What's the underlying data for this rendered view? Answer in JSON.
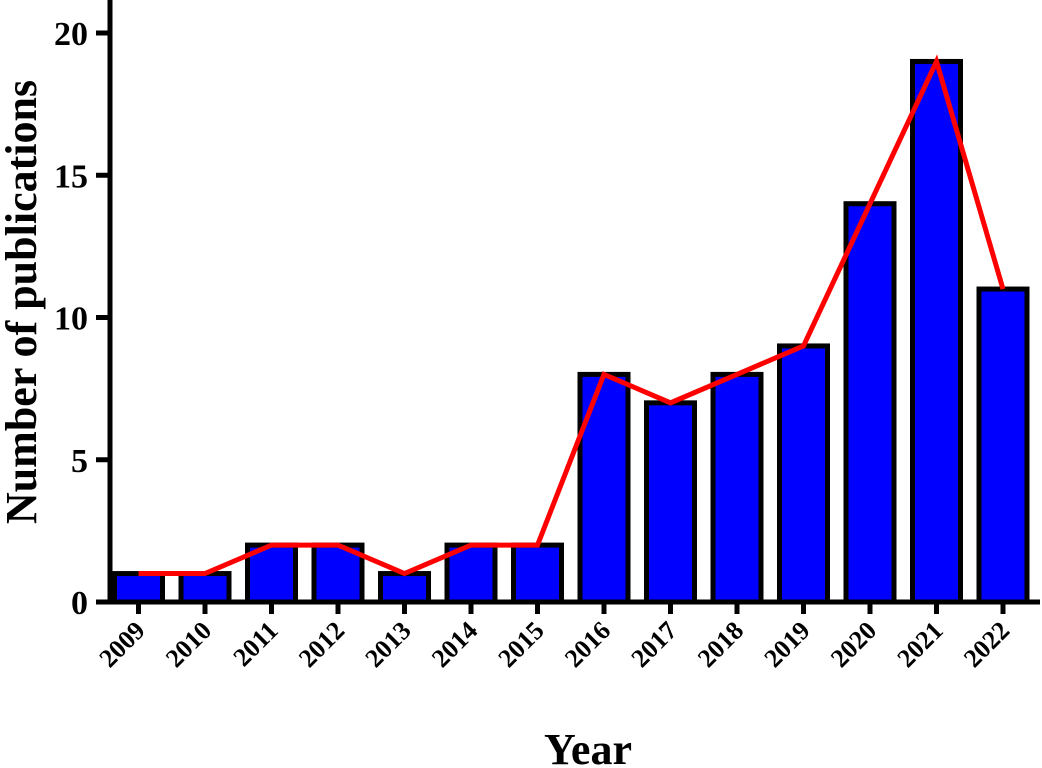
{
  "chart_data": {
    "type": "bar",
    "title": "",
    "xlabel": "Year",
    "ylabel": "Number of publications",
    "categories": [
      "2009",
      "2010",
      "2011",
      "2012",
      "2013",
      "2014",
      "2015",
      "2016",
      "2017",
      "2018",
      "2019",
      "2020",
      "2021",
      "2022"
    ],
    "series": [
      {
        "type": "bar",
        "values": [
          1,
          1,
          2,
          2,
          1,
          2,
          2,
          8,
          7,
          8,
          9,
          14,
          19,
          11
        ]
      },
      {
        "type": "line",
        "values": [
          1,
          1,
          2,
          2,
          1,
          2,
          2,
          8,
          7,
          8,
          9,
          14,
          19,
          11
        ]
      }
    ],
    "ylim": [
      0,
      21
    ],
    "yticks": [
      "0",
      "5",
      "10",
      "15",
      "20"
    ],
    "grid": false,
    "legend": "none",
    "colors": {
      "bar_fill": "#0000ff",
      "bar_stroke": "#000000",
      "line": "#ff0000",
      "axis": "#000000"
    }
  }
}
